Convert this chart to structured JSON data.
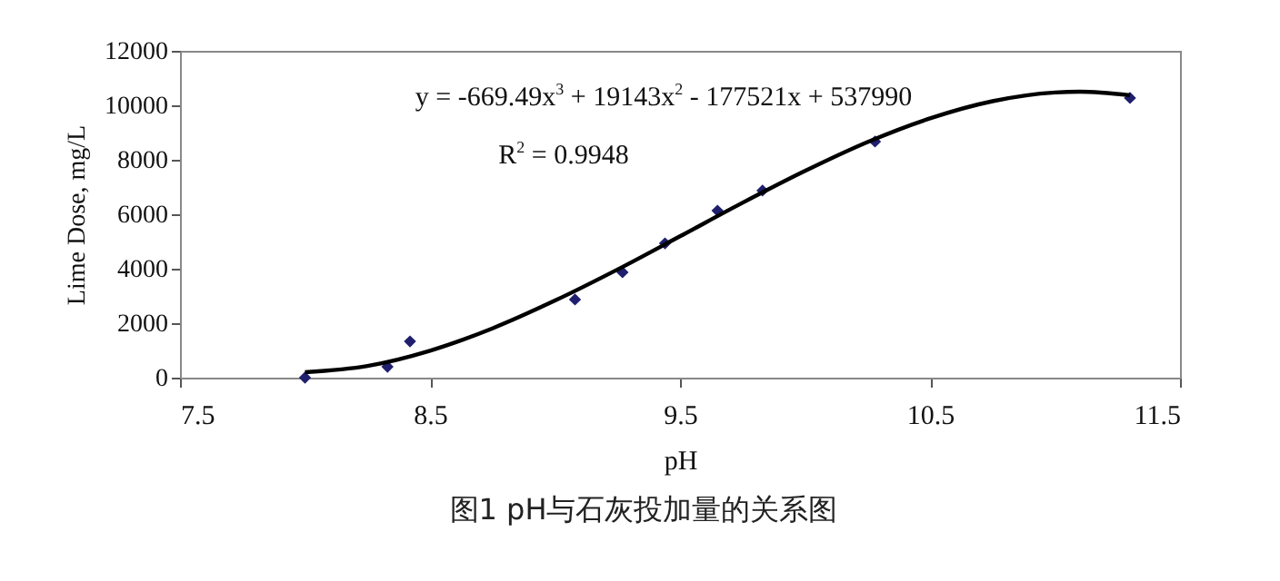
{
  "chart_data": {
    "type": "scatter",
    "title": "图1   pH与石灰投加量的关系图",
    "xlabel": "pH",
    "ylabel": "Lime Dose, mg/L",
    "xlim": [
      7.5,
      11.5
    ],
    "xticks": [
      7.5,
      8.5,
      9.5,
      10.5,
      11.5
    ],
    "ylim": [
      0,
      12000
    ],
    "yticks": [
      0,
      2000,
      4000,
      6000,
      8000,
      10000,
      12000
    ],
    "grid": false,
    "marker": "diamond",
    "annotations": [
      "y = -669.49x$^{3}$ + 19143x$^{2}$ - 177521x + 537990",
      "R$^{2}$ = 0.9948"
    ],
    "series": [
      {
        "color": "#1f1f6e",
        "x": [
          8.0,
          8.33,
          8.42,
          9.08,
          9.27,
          9.44,
          9.65,
          9.83,
          10.28,
          11.3
        ],
        "values": [
          0,
          400,
          1330,
          2870,
          3870,
          4930,
          6130,
          6870,
          8670,
          10270
        ]
      },
      {
        "type": "line",
        "color": "#000000",
        "marker": "none",
        "x": [
          8.0,
          8.25,
          8.5,
          8.75,
          9.0,
          9.25,
          9.5,
          9.75,
          10.0,
          10.25,
          10.5,
          10.75,
          11.0,
          11.1,
          11.3
        ],
        "values": [
          200,
          430,
          990,
          1810,
          2830,
          3970,
          5190,
          6420,
          7590,
          8650,
          9520,
          10150,
          10470,
          10500,
          10370
        ]
      }
    ]
  }
}
